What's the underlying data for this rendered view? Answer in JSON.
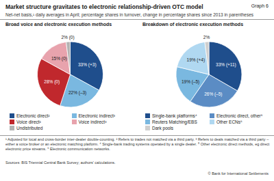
{
  "title": "Market structure gravitates to electronic relationship-driven OTC model",
  "label": "Graph 6",
  "subtitle": "Net-net basis,¹ daily averages in April; percentage shares in turnover, change in percentage shares since 2013 in parentheses",
  "chart_data": [
    {
      "type": "pie",
      "title": "Broad voice and electronic execution methods",
      "categories": [
        "Electronic direct²",
        "Electronic indirect³",
        "Voice direct²",
        "Voice indirect³",
        "Undistributed"
      ],
      "values": [
        33,
        22,
        28,
        15,
        2
      ],
      "value_labels": [
        "33% (+3)",
        "22% (–3)",
        "28% (0)",
        "15% (0)",
        "2% (0)"
      ],
      "colors": [
        "#1f4e8c",
        "#7ab8e0",
        "#c0282d",
        "#e8a3ad",
        "#b3b3b3"
      ],
      "data_labels": true
    },
    {
      "type": "pie",
      "title": "Breakdown of electronic execution methods",
      "categories": [
        "Single-bank platforms⁴",
        "Electronic direct, other⁵",
        "Reuters Matching/EBS",
        "Other ECNs⁶",
        "Dark pools"
      ],
      "values": [
        33,
        26,
        19,
        19,
        2
      ],
      "value_labels": [
        "33% (+11)",
        "26% (–5)",
        "19% (–5)",
        "19% (+4)",
        "2%"
      ],
      "colors": [
        "#1f4e8c",
        "#5b8cc4",
        "#7ab8e0",
        "#b0d8f1",
        "#cfcfcf"
      ],
      "data_labels": true
    }
  ],
  "footnotes": [
    "¹ Adjusted for local and cross-border inter-dealer double-counting.",
    "² Refers to trades not matched via a third party.",
    "³ Refers to deals matched via a third party – either a voice broker or an electronic matching platform.",
    "⁴ Single-bank trading systems operated by a single dealer.",
    "⁵ Other electronic direct methods, eg direct electronic price streams.",
    "⁶ Electronic communication networks."
  ],
  "source": "Sources: BIS Triennial Central Bank Survey; authors' calculations.",
  "copyright": "© Bank for International Settlements"
}
